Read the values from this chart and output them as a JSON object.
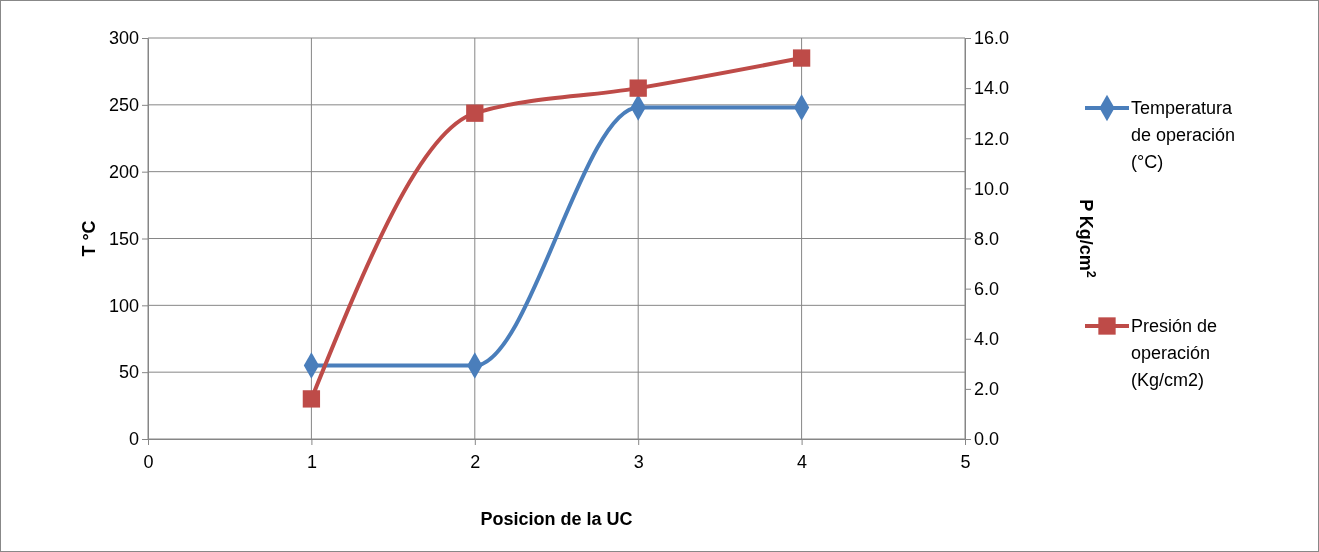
{
  "chart_data": {
    "type": "line",
    "xlabel": "Posicion de la UC",
    "ylabel": "T °C",
    "y2label": "P Kg/cm$^{2}$",
    "x": [
      1,
      2,
      3,
      4
    ],
    "series": [
      {
        "name": "Temperatura de operación (°C)",
        "color": "#4a7ebb",
        "values": [
          55,
          55,
          248,
          248
        ],
        "marker": "diamond"
      },
      {
        "name": "Presión de operación (Kg/cm2)",
        "color": "#be4b48",
        "values": [
          1.6,
          13.0,
          14.0,
          15.2
        ],
        "marker": "square",
        "axis": "y2"
      }
    ],
    "xlim": [
      0,
      5
    ],
    "xticks": [
      0,
      1,
      2,
      3,
      4,
      5
    ],
    "ylim": [
      0,
      300
    ],
    "yticks": [
      0,
      50,
      100,
      150,
      200,
      250,
      300
    ],
    "y2lim": [
      0,
      16
    ],
    "y2ticks": [
      {
        "value": 0,
        "label": "0.0"
      },
      {
        "value": 2,
        "label": "2.0"
      },
      {
        "value": 4,
        "label": "4.0"
      },
      {
        "value": 6,
        "label": "6.0"
      },
      {
        "value": 8,
        "label": "8.0"
      },
      {
        "value": 10,
        "label": "10.0"
      },
      {
        "value": 12,
        "label": "12.0"
      },
      {
        "value": 14,
        "label": "14.0"
      },
      {
        "value": 16,
        "label": "16.0"
      }
    ],
    "grid": true,
    "legend": "right",
    "line_style": "solid"
  }
}
